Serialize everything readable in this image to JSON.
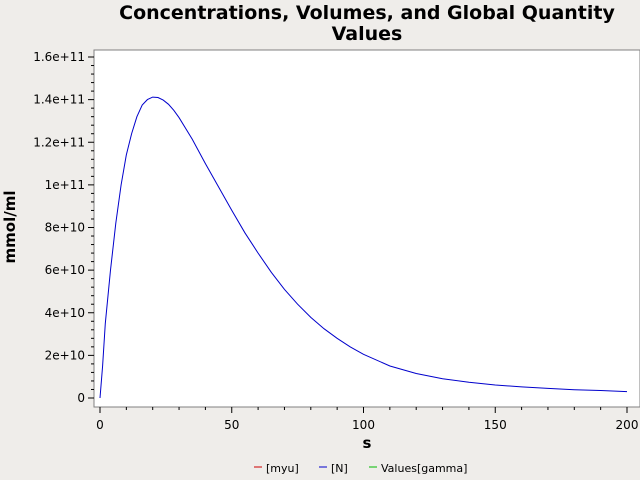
{
  "chart_data": {
    "type": "line",
    "title_lines": [
      "Concentrations, Volumes, and Global Quantity",
      "Values"
    ],
    "xlabel": "s",
    "ylabel": "mmol/ml",
    "xlim": [
      0,
      200
    ],
    "ylim": [
      0,
      160000000000
    ],
    "x_ticks": [
      0,
      50,
      100,
      150,
      200
    ],
    "x_tick_labels": [
      "0",
      "50",
      "100",
      "150",
      "200"
    ],
    "y_ticks": [
      0,
      20000000000,
      40000000000,
      60000000000,
      80000000000,
      100000000000,
      120000000000,
      140000000000,
      160000000000
    ],
    "y_tick_labels": [
      "0",
      "2e+10",
      "4e+10",
      "6e+10",
      "8e+10",
      "1e+11",
      "1.2e+11",
      "1.4e+11",
      "1.6e+11"
    ],
    "grid": false,
    "legend_position": "bottom",
    "legend": [
      {
        "label": "[myu]",
        "color": "#cc0000"
      },
      {
        "label": "[N]",
        "color": "#0000cc"
      },
      {
        "label": "Values[gamma]",
        "color": "#00bb00"
      }
    ],
    "series": [
      {
        "name": "[N]",
        "color": "#0000cc",
        "x": [
          0,
          1,
          2,
          4,
          6,
          8,
          10,
          12,
          14,
          16,
          18,
          20,
          22,
          24,
          26,
          28,
          30,
          35,
          40,
          45,
          50,
          55,
          60,
          65,
          70,
          75,
          80,
          85,
          90,
          95,
          100,
          110,
          120,
          130,
          140,
          150,
          160,
          170,
          180,
          190,
          200
        ],
        "y": [
          0,
          15000000000,
          35000000000,
          60000000000,
          82000000000,
          100000000000,
          114000000000,
          124000000000,
          132000000000,
          137500000000,
          140000000000,
          141200000000,
          141000000000,
          139800000000,
          137800000000,
          135000000000,
          131500000000,
          121500000000,
          110000000000,
          99000000000,
          88000000000,
          77500000000,
          68000000000,
          59000000000,
          51000000000,
          44000000000,
          37800000000,
          32500000000,
          28000000000,
          24000000000,
          20500000000,
          15000000000,
          11500000000,
          9000000000,
          7400000000,
          6100000000,
          5200000000,
          4500000000,
          3900000000,
          3500000000,
          3000000000
        ]
      }
    ]
  }
}
